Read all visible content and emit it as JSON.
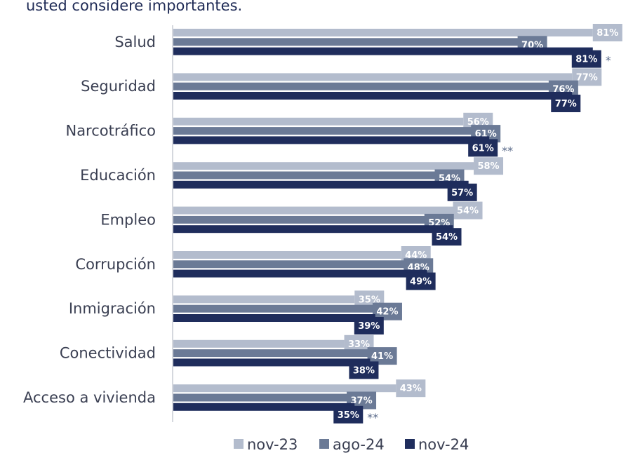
{
  "subtitle": "usted considere importantes.",
  "colors": {
    "nov-23": "#b3bccd",
    "ago-24": "#6b7a96",
    "nov-24": "#1f2d5c",
    "axis": "#b9bec9"
  },
  "chart_data": {
    "type": "bar",
    "orientation": "horizontal",
    "categories": [
      "Salud",
      "Seguridad",
      "Narcotráfico",
      "Educación",
      "Empleo",
      "Corrupción",
      "Inmigración",
      "Conectividad",
      "Acceso a vivienda"
    ],
    "series": [
      {
        "name": "nov-23",
        "values": [
          81,
          77,
          56,
          58,
          54,
          44,
          35,
          33,
          43
        ],
        "labels": [
          "81%",
          "77%",
          "56%",
          "58%",
          "54%",
          "44%",
          "35%",
          "33%",
          "43%"
        ]
      },
      {
        "name": "ago-24",
        "values": [
          70,
          76,
          61,
          54,
          52,
          48,
          42,
          41,
          37
        ],
        "labels": [
          "70%",
          "76%",
          "61%",
          "54%",
          "52%",
          "48%",
          "42%",
          "41%",
          "37%"
        ]
      },
      {
        "name": "nov-24",
        "values": [
          81,
          77,
          61,
          57,
          54,
          49,
          39,
          38,
          35
        ],
        "labels": [
          "81%",
          "77%",
          "61%",
          "57%",
          "54%",
          "49%",
          "39%",
          "38%",
          "35%"
        ]
      }
    ],
    "annotations": [
      {
        "category": "Salud",
        "series": "nov-24",
        "text": "*"
      },
      {
        "category": "Narcotráfico",
        "series": "nov-24",
        "text": "**"
      },
      {
        "category": "Acceso a vivienda",
        "series": "nov-24",
        "text": "**"
      }
    ],
    "legend": [
      "nov-23",
      "ago-24",
      "nov-24"
    ],
    "legend_position": "bottom",
    "xlim": [
      0,
      85
    ],
    "grid": false
  }
}
